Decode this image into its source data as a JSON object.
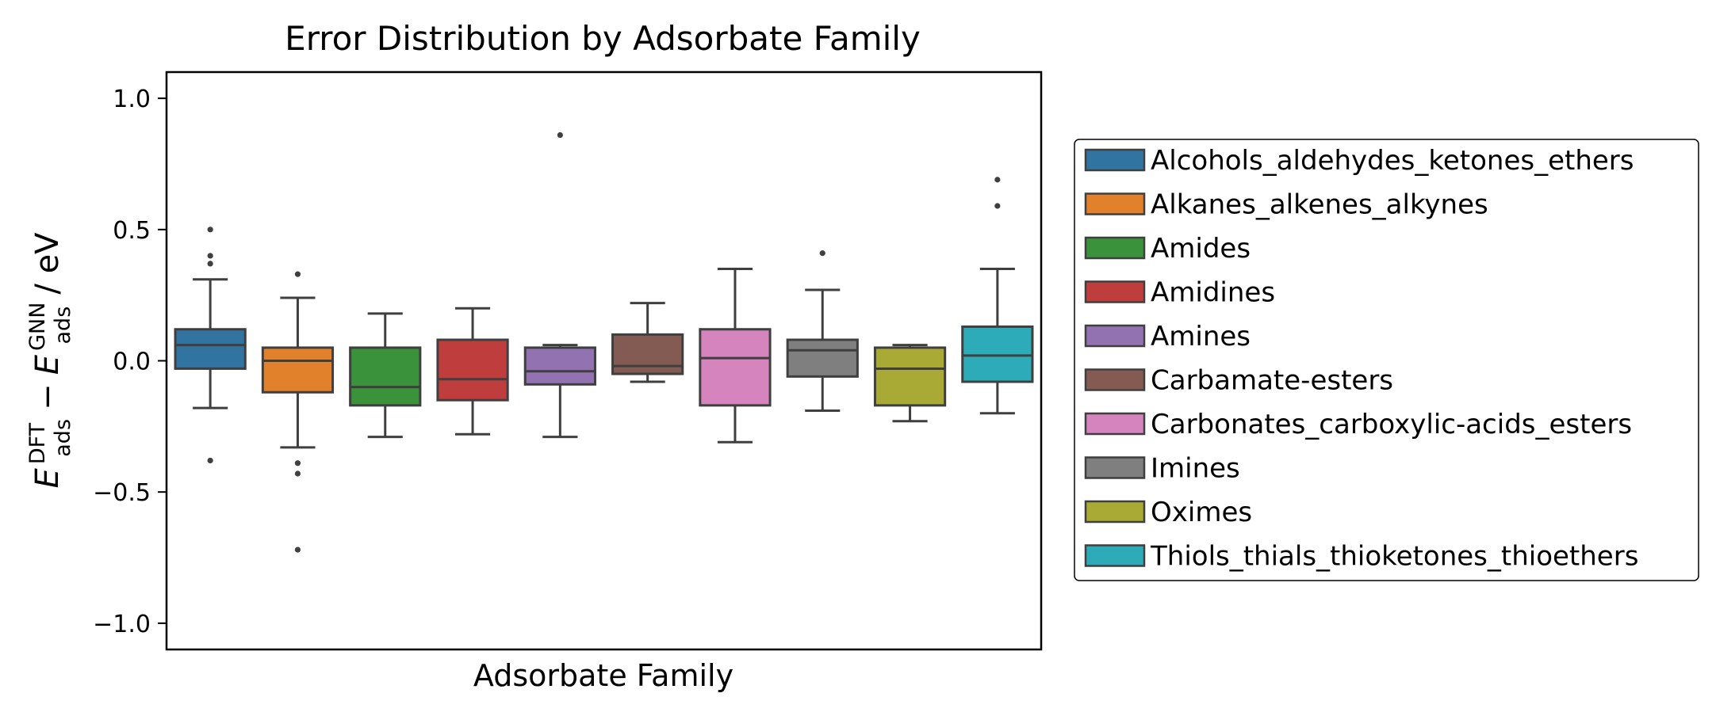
{
  "chart_data": {
    "type": "box",
    "title": "Error Distribution by Adsorbate Family",
    "xlabel": "Adsorbate Family",
    "ylabel": {
      "symbol": "E",
      "sub": "ads",
      "sup1": "DFT",
      "minus": "−",
      "sup2": "GNN",
      "unit": " / eV"
    },
    "ylim": [
      -1.1,
      1.1
    ],
    "yticks": [
      -1.0,
      -0.5,
      0.0,
      0.5,
      1.0
    ],
    "ytick_labels": [
      "−1.0",
      "−0.5",
      "0.0",
      "0.5",
      "1.0"
    ],
    "grid": false,
    "legend_position": "right-outside",
    "series": [
      {
        "name": "Alcohols_aldehydes_ketones_ethers",
        "color": "#3274a1",
        "whisker_low": -0.18,
        "q1": -0.03,
        "median": 0.06,
        "q3": 0.12,
        "whisker_high": 0.31,
        "outliers": [
          0.5,
          0.4,
          0.37,
          -0.38
        ]
      },
      {
        "name": "Alkanes_alkenes_alkynes",
        "color": "#e1812c",
        "whisker_low": -0.33,
        "q1": -0.12,
        "median": 0.0,
        "q3": 0.05,
        "whisker_high": 0.24,
        "outliers": [
          0.33,
          -0.39,
          -0.43,
          -0.72
        ]
      },
      {
        "name": "Amides",
        "color": "#3a923a",
        "whisker_low": -0.29,
        "q1": -0.17,
        "median": -0.1,
        "q3": 0.05,
        "whisker_high": 0.18,
        "outliers": []
      },
      {
        "name": "Amidines",
        "color": "#c03d3e",
        "whisker_low": -0.28,
        "q1": -0.15,
        "median": -0.07,
        "q3": 0.08,
        "whisker_high": 0.2,
        "outliers": []
      },
      {
        "name": "Amines",
        "color": "#9372b2",
        "whisker_low": -0.29,
        "q1": -0.09,
        "median": -0.04,
        "q3": 0.05,
        "whisker_high": 0.06,
        "outliers": [
          0.86
        ]
      },
      {
        "name": "Carbamate-esters",
        "color": "#845b53",
        "whisker_low": -0.08,
        "q1": -0.05,
        "median": -0.02,
        "q3": 0.1,
        "whisker_high": 0.22,
        "outliers": []
      },
      {
        "name": "Carbonates_carboxylic-acids_esters",
        "color": "#d684bd",
        "whisker_low": -0.31,
        "q1": -0.17,
        "median": 0.01,
        "q3": 0.12,
        "whisker_high": 0.35,
        "outliers": []
      },
      {
        "name": "Imines",
        "color": "#7f7f7f",
        "whisker_low": -0.19,
        "q1": -0.06,
        "median": 0.04,
        "q3": 0.08,
        "whisker_high": 0.27,
        "outliers": [
          0.41
        ]
      },
      {
        "name": "Oximes",
        "color": "#a9aa35",
        "whisker_low": -0.23,
        "q1": -0.17,
        "median": -0.03,
        "q3": 0.05,
        "whisker_high": 0.06,
        "outliers": []
      },
      {
        "name": "Thiols_thials_thioketones_thioethers",
        "color": "#2eabb8",
        "whisker_low": -0.2,
        "q1": -0.08,
        "median": 0.02,
        "q3": 0.13,
        "whisker_high": 0.35,
        "outliers": [
          0.69,
          0.59
        ]
      }
    ]
  }
}
